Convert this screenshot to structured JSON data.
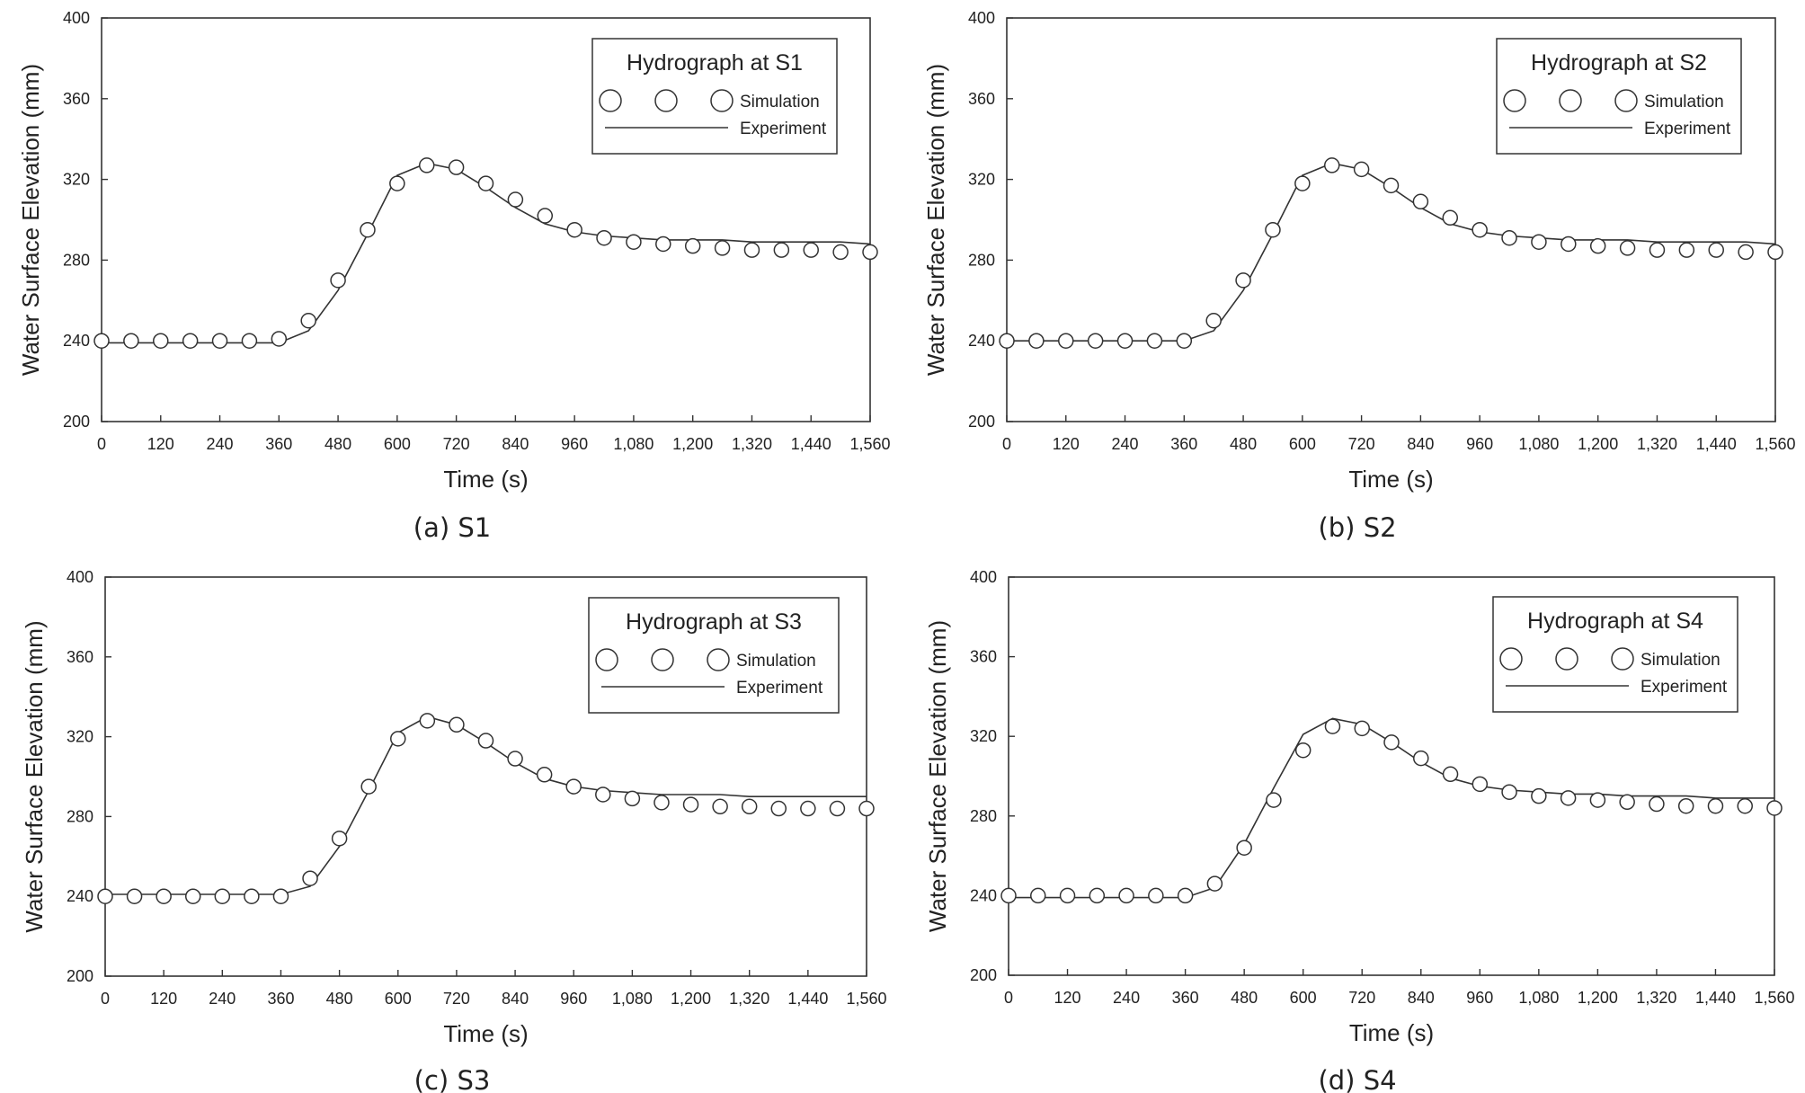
{
  "chart_data": [
    {
      "type": "scatter",
      "panel": "a",
      "caption": "(a) S1",
      "legend": {
        "title": "Hydrograph at S1",
        "simulation_label": "Simulation",
        "experiment_label": "Experiment",
        "placement": "top-right"
      },
      "xlabel": "Time (s)",
      "ylabel": "Water Surface Elevation (mm)",
      "xlim": [
        0,
        1560
      ],
      "ylim": [
        200,
        400
      ],
      "x_ticks": [
        0,
        120,
        240,
        360,
        480,
        600,
        720,
        840,
        960,
        1080,
        1200,
        1320,
        1440,
        1560
      ],
      "x_tick_labels": [
        "0",
        "120",
        "240",
        "360",
        "480",
        "600",
        "720",
        "840",
        "960",
        "1,080",
        "1,200",
        "1,320",
        "1,440",
        "1,560"
      ],
      "y_ticks": [
        200,
        240,
        280,
        320,
        360,
        400
      ],
      "y_tick_labels": [
        "200",
        "240",
        "280",
        "320",
        "360",
        "400"
      ],
      "grid": false,
      "series": [
        {
          "name": "Simulation",
          "marker": "open-circle",
          "x": [
            0,
            60,
            120,
            180,
            240,
            300,
            360,
            420,
            480,
            540,
            600,
            660,
            720,
            780,
            840,
            900,
            960,
            1020,
            1080,
            1140,
            1200,
            1260,
            1320,
            1380,
            1440,
            1500,
            1560
          ],
          "y": [
            240,
            240,
            240,
            240,
            240,
            240,
            241,
            250,
            270,
            295,
            318,
            327,
            326,
            318,
            310,
            302,
            295,
            291,
            289,
            288,
            287,
            286,
            285,
            285,
            285,
            284,
            284
          ]
        },
        {
          "name": "Experiment",
          "marker": "line",
          "x": [
            0,
            60,
            120,
            180,
            240,
            300,
            360,
            420,
            480,
            540,
            600,
            660,
            720,
            780,
            840,
            900,
            960,
            1020,
            1080,
            1140,
            1200,
            1260,
            1320,
            1380,
            1440,
            1500,
            1560
          ],
          "y": [
            239,
            239,
            239,
            239,
            239,
            239,
            239,
            245,
            265,
            293,
            322,
            328,
            325,
            316,
            306,
            298,
            294,
            292,
            291,
            290,
            290,
            290,
            289,
            289,
            289,
            289,
            288
          ]
        }
      ]
    },
    {
      "type": "scatter",
      "panel": "b",
      "caption": "(b) S2",
      "legend": {
        "title": "Hydrograph at S2",
        "simulation_label": "Simulation",
        "experiment_label": "Experiment",
        "placement": "top-right"
      },
      "xlabel": "Time (s)",
      "ylabel": "Water Surface Elevation (mm)",
      "xlim": [
        0,
        1560
      ],
      "ylim": [
        200,
        400
      ],
      "x_ticks": [
        0,
        120,
        240,
        360,
        480,
        600,
        720,
        840,
        960,
        1080,
        1200,
        1320,
        1440,
        1560
      ],
      "x_tick_labels": [
        "0",
        "120",
        "240",
        "360",
        "480",
        "600",
        "720",
        "840",
        "960",
        "1,080",
        "1,200",
        "1,320",
        "1,440",
        "1,560"
      ],
      "y_ticks": [
        200,
        240,
        280,
        320,
        360,
        400
      ],
      "y_tick_labels": [
        "200",
        "240",
        "280",
        "320",
        "360",
        "400"
      ],
      "grid": false,
      "series": [
        {
          "name": "Simulation",
          "marker": "open-circle",
          "x": [
            0,
            60,
            120,
            180,
            240,
            300,
            360,
            420,
            480,
            540,
            600,
            660,
            720,
            780,
            840,
            900,
            960,
            1020,
            1080,
            1140,
            1200,
            1260,
            1320,
            1380,
            1440,
            1500,
            1560
          ],
          "y": [
            240,
            240,
            240,
            240,
            240,
            240,
            240,
            250,
            270,
            295,
            318,
            327,
            325,
            317,
            309,
            301,
            295,
            291,
            289,
            288,
            287,
            286,
            285,
            285,
            285,
            284,
            284
          ]
        },
        {
          "name": "Experiment",
          "marker": "line",
          "x": [
            0,
            60,
            120,
            180,
            240,
            300,
            360,
            420,
            480,
            540,
            600,
            660,
            720,
            780,
            840,
            900,
            960,
            1020,
            1080,
            1140,
            1200,
            1260,
            1320,
            1380,
            1440,
            1500,
            1560
          ],
          "y": [
            240,
            240,
            240,
            240,
            240,
            240,
            240,
            245,
            265,
            293,
            322,
            328,
            325,
            316,
            306,
            298,
            294,
            292,
            291,
            290,
            290,
            290,
            289,
            289,
            289,
            289,
            288
          ]
        }
      ]
    },
    {
      "type": "scatter",
      "panel": "c",
      "caption": "(c) S3",
      "legend": {
        "title": "Hydrograph at S3",
        "simulation_label": "Simulation",
        "experiment_label": "Experiment",
        "placement": "top-right"
      },
      "xlabel": "Time (s)",
      "ylabel": "Water Surface Elevation (mm)",
      "xlim": [
        0,
        1560
      ],
      "ylim": [
        200,
        400
      ],
      "x_ticks": [
        0,
        120,
        240,
        360,
        480,
        600,
        720,
        840,
        960,
        1080,
        1200,
        1320,
        1440,
        1560
      ],
      "x_tick_labels": [
        "0",
        "120",
        "240",
        "360",
        "480",
        "600",
        "720",
        "840",
        "960",
        "1,080",
        "1,200",
        "1,320",
        "1,440",
        "1,560"
      ],
      "y_ticks": [
        200,
        240,
        280,
        320,
        360,
        400
      ],
      "y_tick_labels": [
        "200",
        "240",
        "280",
        "320",
        "360",
        "400"
      ],
      "grid": false,
      "series": [
        {
          "name": "Simulation",
          "marker": "open-circle",
          "x": [
            0,
            60,
            120,
            180,
            240,
            300,
            360,
            420,
            480,
            540,
            600,
            660,
            720,
            780,
            840,
            900,
            960,
            1020,
            1080,
            1140,
            1200,
            1260,
            1320,
            1380,
            1440,
            1500,
            1560
          ],
          "y": [
            240,
            240,
            240,
            240,
            240,
            240,
            240,
            249,
            269,
            295,
            319,
            328,
            326,
            318,
            309,
            301,
            295,
            291,
            289,
            287,
            286,
            285,
            285,
            284,
            284,
            284,
            284
          ]
        },
        {
          "name": "Experiment",
          "marker": "line",
          "x": [
            0,
            60,
            120,
            180,
            240,
            300,
            360,
            420,
            480,
            540,
            600,
            660,
            720,
            780,
            840,
            900,
            960,
            1020,
            1080,
            1140,
            1200,
            1260,
            1320,
            1380,
            1440,
            1500,
            1560
          ],
          "y": [
            241,
            241,
            241,
            241,
            241,
            241,
            241,
            245,
            265,
            293,
            322,
            330,
            326,
            317,
            307,
            299,
            295,
            293,
            292,
            291,
            291,
            291,
            290,
            290,
            290,
            290,
            290
          ]
        }
      ]
    },
    {
      "type": "scatter",
      "panel": "d",
      "caption": "(d) S4",
      "legend": {
        "title": "Hydrograph at S4",
        "simulation_label": "Simulation",
        "experiment_label": "Experiment",
        "placement": "top-right"
      },
      "xlabel": "Time (s)",
      "ylabel": "Water Surface Elevation (mm)",
      "xlim": [
        0,
        1560
      ],
      "ylim": [
        200,
        400
      ],
      "x_ticks": [
        0,
        120,
        240,
        360,
        480,
        600,
        720,
        840,
        960,
        1080,
        1200,
        1320,
        1440,
        1560
      ],
      "x_tick_labels": [
        "0",
        "120",
        "240",
        "360",
        "480",
        "600",
        "720",
        "840",
        "960",
        "1,080",
        "1,200",
        "1,320",
        "1,440",
        "1,560"
      ],
      "y_ticks": [
        200,
        240,
        280,
        320,
        360,
        400
      ],
      "y_tick_labels": [
        "200",
        "240",
        "280",
        "320",
        "360",
        "400"
      ],
      "grid": false,
      "series": [
        {
          "name": "Simulation",
          "marker": "open-circle",
          "x": [
            0,
            60,
            120,
            180,
            240,
            300,
            360,
            420,
            480,
            540,
            600,
            660,
            720,
            780,
            840,
            900,
            960,
            1020,
            1080,
            1140,
            1200,
            1260,
            1320,
            1380,
            1440,
            1500,
            1560
          ],
          "y": [
            240,
            240,
            240,
            240,
            240,
            240,
            240,
            246,
            264,
            288,
            313,
            325,
            324,
            317,
            309,
            301,
            296,
            292,
            290,
            289,
            288,
            287,
            286,
            285,
            285,
            285,
            284
          ]
        },
        {
          "name": "Experiment",
          "marker": "line",
          "x": [
            0,
            60,
            120,
            180,
            240,
            300,
            360,
            420,
            480,
            540,
            600,
            660,
            720,
            780,
            840,
            900,
            960,
            1020,
            1080,
            1140,
            1200,
            1260,
            1320,
            1380,
            1440,
            1500,
            1560
          ],
          "y": [
            239,
            239,
            239,
            239,
            239,
            239,
            239,
            244,
            266,
            294,
            321,
            329,
            326,
            317,
            307,
            299,
            295,
            293,
            292,
            291,
            291,
            290,
            290,
            290,
            289,
            289,
            289
          ]
        }
      ]
    }
  ]
}
